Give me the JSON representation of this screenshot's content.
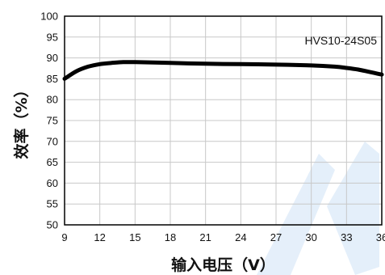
{
  "chart_data": {
    "type": "line",
    "title": "",
    "annotation": "HVS10-24S05",
    "xlabel": "输入电压（V）",
    "ylabel": "效率（%）",
    "xlim": [
      9,
      36
    ],
    "ylim": [
      50,
      100
    ],
    "xticks": [
      9,
      12,
      15,
      18,
      21,
      24,
      27,
      30,
      33,
      36
    ],
    "yticks": [
      50,
      55,
      60,
      65,
      70,
      75,
      80,
      85,
      90,
      95,
      100
    ],
    "grid": true,
    "series": [
      {
        "x": [
          9,
          10,
          11,
          12,
          13,
          14,
          15,
          18,
          21,
          24,
          27,
          30,
          32,
          33,
          34,
          35,
          36
        ],
        "y": [
          85,
          86.8,
          87.9,
          88.5,
          88.8,
          89.0,
          89.0,
          88.8,
          88.6,
          88.5,
          88.4,
          88.2,
          87.9,
          87.6,
          87.2,
          86.6,
          86.0
        ]
      }
    ],
    "colors": {
      "line": "#000000",
      "grid": "#c8c8c8",
      "watermark": "#cfe2f6"
    }
  }
}
